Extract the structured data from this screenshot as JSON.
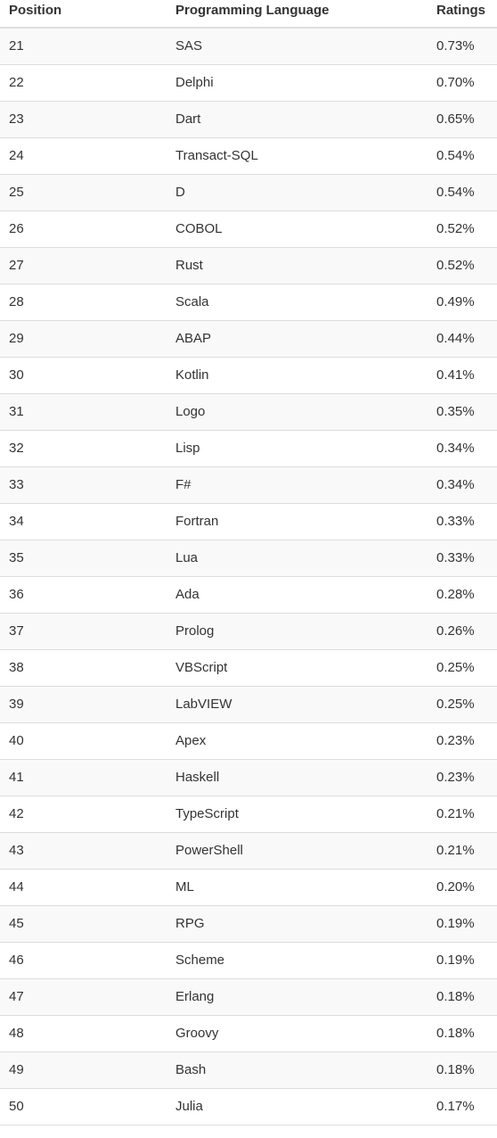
{
  "table": {
    "headers": {
      "position": "Position",
      "language": "Programming Language",
      "ratings": "Ratings"
    },
    "rows": [
      {
        "position": "21",
        "language": "SAS",
        "rating": "0.73%"
      },
      {
        "position": "22",
        "language": "Delphi",
        "rating": "0.70%"
      },
      {
        "position": "23",
        "language": "Dart",
        "rating": "0.65%"
      },
      {
        "position": "24",
        "language": "Transact-SQL",
        "rating": "0.54%"
      },
      {
        "position": "25",
        "language": "D",
        "rating": "0.54%"
      },
      {
        "position": "26",
        "language": "COBOL",
        "rating": "0.52%"
      },
      {
        "position": "27",
        "language": "Rust",
        "rating": "0.52%"
      },
      {
        "position": "28",
        "language": "Scala",
        "rating": "0.49%"
      },
      {
        "position": "29",
        "language": "ABAP",
        "rating": "0.44%"
      },
      {
        "position": "30",
        "language": "Kotlin",
        "rating": "0.41%"
      },
      {
        "position": "31",
        "language": "Logo",
        "rating": "0.35%"
      },
      {
        "position": "32",
        "language": "Lisp",
        "rating": "0.34%"
      },
      {
        "position": "33",
        "language": "F#",
        "rating": "0.34%"
      },
      {
        "position": "34",
        "language": "Fortran",
        "rating": "0.33%"
      },
      {
        "position": "35",
        "language": "Lua",
        "rating": "0.33%"
      },
      {
        "position": "36",
        "language": "Ada",
        "rating": "0.28%"
      },
      {
        "position": "37",
        "language": "Prolog",
        "rating": "0.26%"
      },
      {
        "position": "38",
        "language": "VBScript",
        "rating": "0.25%"
      },
      {
        "position": "39",
        "language": "LabVIEW",
        "rating": "0.25%"
      },
      {
        "position": "40",
        "language": "Apex",
        "rating": "0.23%"
      },
      {
        "position": "41",
        "language": "Haskell",
        "rating": "0.23%"
      },
      {
        "position": "42",
        "language": "TypeScript",
        "rating": "0.21%"
      },
      {
        "position": "43",
        "language": "PowerShell",
        "rating": "0.21%"
      },
      {
        "position": "44",
        "language": "ML",
        "rating": "0.20%"
      },
      {
        "position": "45",
        "language": "RPG",
        "rating": "0.19%"
      },
      {
        "position": "46",
        "language": "Scheme",
        "rating": "0.19%"
      },
      {
        "position": "47",
        "language": "Erlang",
        "rating": "0.18%"
      },
      {
        "position": "48",
        "language": "Groovy",
        "rating": "0.18%"
      },
      {
        "position": "49",
        "language": "Bash",
        "rating": "0.18%"
      },
      {
        "position": "50",
        "language": "Julia",
        "rating": "0.17%"
      }
    ]
  },
  "colors": {
    "text": "#333333",
    "stripe": "#f9f9f9",
    "border": "#dddddd"
  }
}
